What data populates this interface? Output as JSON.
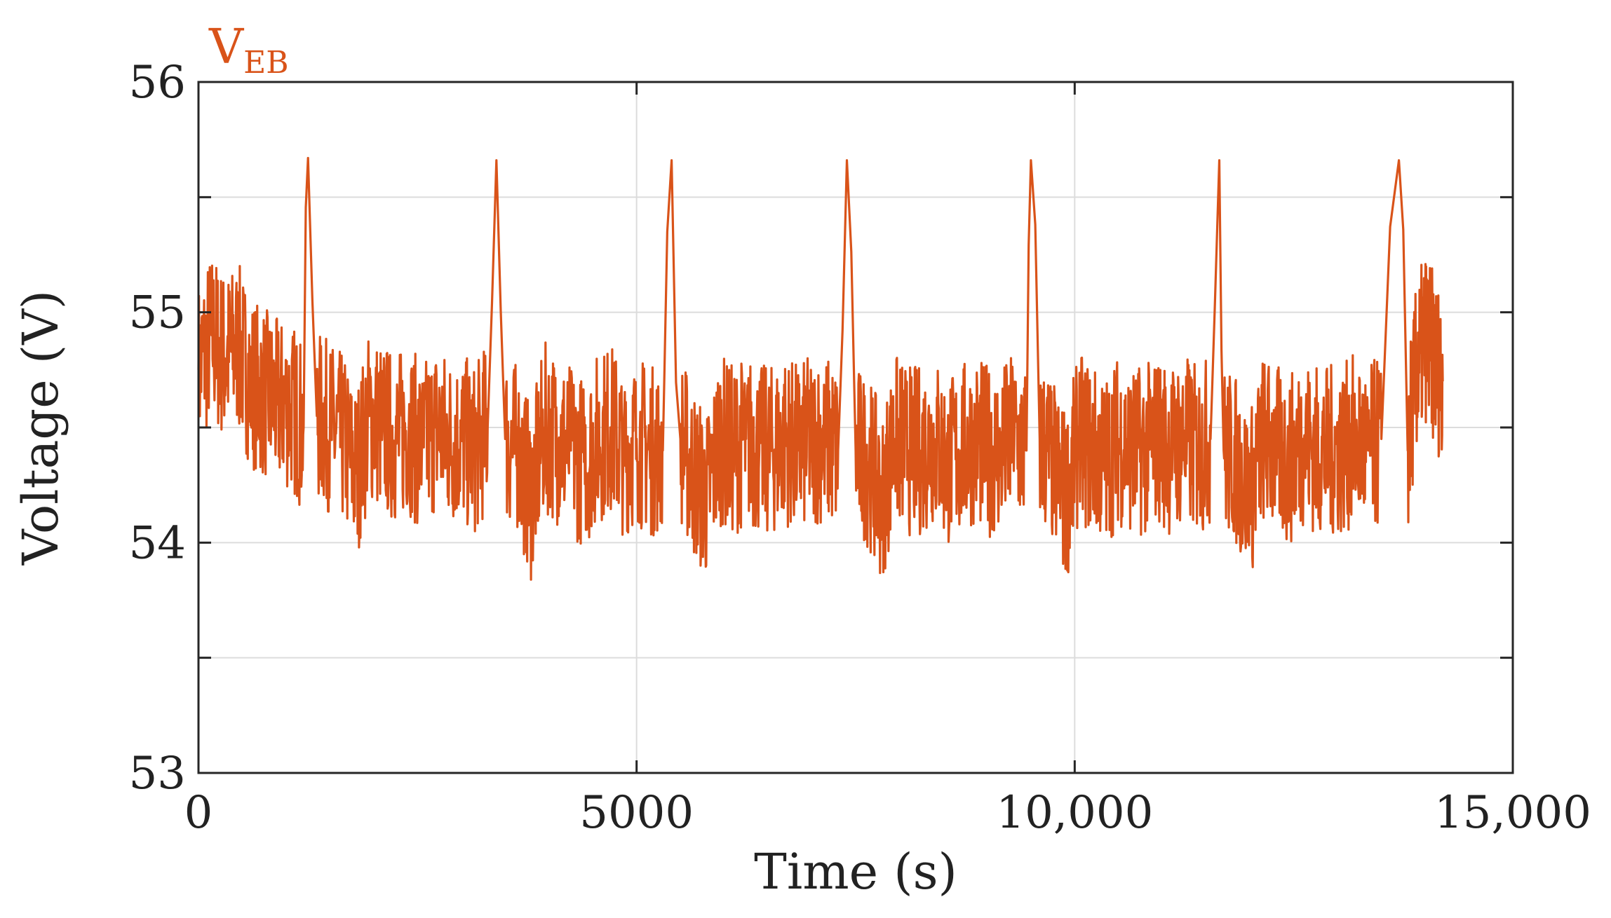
{
  "chart_data": {
    "type": "line",
    "title": "",
    "xlabel": "Time (s)",
    "ylabel": "Voltage (V)",
    "xlim": [
      0,
      15000
    ],
    "ylim": [
      53,
      56
    ],
    "xticks": [
      0,
      5000,
      10000,
      15000
    ],
    "xtick_labels": [
      "0",
      "5000",
      "10,000",
      "15,000"
    ],
    "yticks": [
      53,
      54,
      55,
      56
    ],
    "ytick_labels": [
      "53",
      "54",
      "55",
      "56"
    ],
    "grid": true,
    "legend_placement": "top-left",
    "series": [
      {
        "name": "V",
        "name_subscript": "EB",
        "color": "#d95319",
        "x": [
          0,
          150,
          300,
          450,
          600,
          750,
          900,
          1050,
          1200,
          1250,
          1350,
          1500,
          1650,
          1800,
          1950,
          2100,
          2250,
          2400,
          2550,
          2700,
          2850,
          3000,
          3150,
          3300,
          3400,
          3500,
          3650,
          3800,
          3950,
          4100,
          4250,
          4400,
          4550,
          4700,
          4850,
          5000,
          5150,
          5300,
          5400,
          5500,
          5650,
          5800,
          5950,
          6100,
          6250,
          6400,
          6550,
          6700,
          6850,
          7000,
          7150,
          7300,
          7400,
          7500,
          7650,
          7800,
          7950,
          8100,
          8250,
          8400,
          8550,
          8700,
          8850,
          9000,
          9150,
          9300,
          9450,
          9500,
          9600,
          9750,
          9900,
          10050,
          10200,
          10350,
          10500,
          10650,
          10800,
          10950,
          11100,
          11250,
          11400,
          11550,
          11650,
          11700,
          11850,
          12000,
          12150,
          12300,
          12450,
          12600,
          12750,
          12900,
          13050,
          13200,
          13350,
          13500,
          13700,
          13800,
          13900,
          14000,
          14100,
          14200
        ],
        "y": [
          54.75,
          54.9,
          54.8,
          54.85,
          54.7,
          54.65,
          54.6,
          54.6,
          54.5,
          55.67,
          54.55,
          54.5,
          54.45,
          54.3,
          54.55,
          54.5,
          54.45,
          54.5,
          54.4,
          54.5,
          54.45,
          54.45,
          54.4,
          54.5,
          55.66,
          54.45,
          54.4,
          54.2,
          54.5,
          54.45,
          54.4,
          54.35,
          54.45,
          54.5,
          54.4,
          54.45,
          54.4,
          54.4,
          55.66,
          54.45,
          54.3,
          54.2,
          54.45,
          54.4,
          54.45,
          54.4,
          54.4,
          54.45,
          54.4,
          54.45,
          54.45,
          54.4,
          55.66,
          54.4,
          54.35,
          54.2,
          54.45,
          54.4,
          54.4,
          54.45,
          54.35,
          54.4,
          54.45,
          54.4,
          54.4,
          54.45,
          54.4,
          55.66,
          54.45,
          54.35,
          54.2,
          54.45,
          54.4,
          54.35,
          54.45,
          54.4,
          54.4,
          54.45,
          54.4,
          54.45,
          54.4,
          54.45,
          55.66,
          54.4,
          54.35,
          54.2,
          54.45,
          54.4,
          54.35,
          54.45,
          54.4,
          54.4,
          54.4,
          54.45,
          54.4,
          54.45,
          55.66,
          54.4,
          54.75,
          54.9,
          54.8,
          54.7
        ]
      }
    ]
  }
}
